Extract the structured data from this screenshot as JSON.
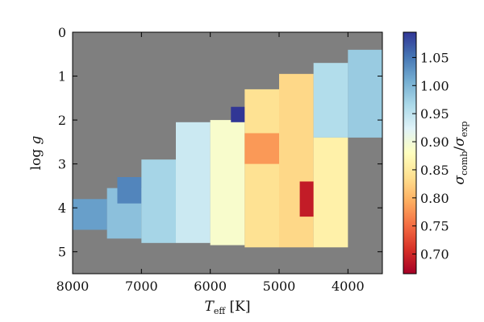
{
  "chart_data": {
    "type": "heatmap",
    "x": {
      "label": "T_eff [K]",
      "range": [
        8000,
        3500
      ],
      "ticks": [
        8000,
        7000,
        6000,
        5000,
        4000
      ],
      "tick_labels": [
        "8000",
        "7000",
        "6000",
        "5000",
        "4000"
      ]
    },
    "y": {
      "label": "log g",
      "range": [
        0,
        5.5
      ],
      "ticks": [
        0,
        1,
        2,
        3,
        4,
        5
      ],
      "tick_labels": [
        "0",
        "1",
        "2",
        "3",
        "4",
        "5"
      ]
    },
    "colorbar": {
      "label": "σ_comb/σ_exp",
      "range": [
        0.665,
        1.095
      ],
      "ticks": [
        0.7,
        0.75,
        0.8,
        0.85,
        0.9,
        0.95,
        1.0,
        1.05
      ],
      "tick_labels": [
        "0.70",
        "0.75",
        "0.80",
        "0.85",
        "0.90",
        "0.95",
        "1.00",
        "1.05"
      ],
      "colormap": "RdYlBu"
    },
    "background_color": "#7f7f7f",
    "grid": false,
    "cells": [
      {
        "teff_min": 7500,
        "teff_max": 8000,
        "logg_min": 3.8,
        "logg_max": 4.5,
        "value": 1.02
      },
      {
        "teff_min": 7000,
        "teff_max": 7500,
        "logg_min": 3.55,
        "logg_max": 4.7,
        "value": 0.99
      },
      {
        "teff_min": 7000,
        "teff_max": 7350,
        "logg_min": 3.3,
        "logg_max": 3.9,
        "value": 1.04
      },
      {
        "teff_min": 6500,
        "teff_max": 7000,
        "logg_min": 2.9,
        "logg_max": 4.8,
        "value": 0.97
      },
      {
        "teff_min": 6000,
        "teff_max": 6500,
        "logg_min": 2.05,
        "logg_max": 4.8,
        "value": 0.94
      },
      {
        "teff_min": 5500,
        "teff_max": 6000,
        "logg_min": 2.0,
        "logg_max": 4.85,
        "value": 0.89
      },
      {
        "teff_min": 5450,
        "teff_max": 5700,
        "logg_min": 1.7,
        "logg_max": 2.05,
        "value": 1.095
      },
      {
        "teff_min": 5000,
        "teff_max": 5500,
        "logg_min": 1.3,
        "logg_max": 4.9,
        "value": 0.84
      },
      {
        "teff_min": 5000,
        "teff_max": 5500,
        "logg_min": 2.3,
        "logg_max": 3.0,
        "value": 0.78
      },
      {
        "teff_min": 4500,
        "teff_max": 5000,
        "logg_min": 0.95,
        "logg_max": 4.9,
        "value": 0.83
      },
      {
        "teff_min": 4400,
        "teff_max": 4700,
        "logg_min": 3.4,
        "logg_max": 4.2,
        "value": 0.69
      },
      {
        "teff_min": 4000,
        "teff_max": 4500,
        "logg_min": 0.7,
        "logg_max": 2.4,
        "value": 0.96
      },
      {
        "teff_min": 4000,
        "teff_max": 4500,
        "logg_min": 2.4,
        "logg_max": 4.9,
        "value": 0.86
      },
      {
        "teff_min": 3500,
        "teff_max": 4000,
        "logg_min": 0.4,
        "logg_max": 2.4,
        "value": 0.98
      }
    ]
  }
}
